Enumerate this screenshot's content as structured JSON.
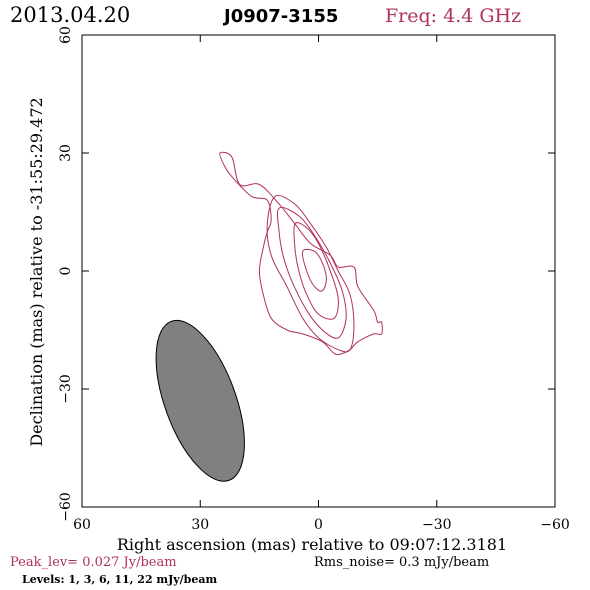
{
  "header": {
    "date": "2013.04.20",
    "source": "J0907-3155",
    "freq": "Freq: 4.4 GHz"
  },
  "axes": {
    "xlabel": "Right ascension (mas) relative to 09:07:12.3181",
    "ylabel": "Declination (mas) relative to -31:55:29.472",
    "xlim": [
      60,
      -60
    ],
    "ylim": [
      -60,
      60
    ],
    "xticks": [
      60,
      30,
      0,
      -30,
      -60
    ],
    "yticks": [
      -60,
      -30,
      0,
      30,
      60
    ],
    "xtick_labels": [
      "60",
      "30",
      "0",
      "−30",
      "−60"
    ],
    "ytick_labels": [
      "−60",
      "−30",
      "0",
      "30",
      "60"
    ]
  },
  "footer": {
    "peak": "Peak_lev=  0.027 Jy/beam",
    "rms": "Rms_noise=  0.3 mJy/beam",
    "levels": "Levels:   1,   3,   6,  11,  22 mJy/beam"
  },
  "colors": {
    "contour": "#b03060",
    "beam_fill": "#808080",
    "axis": "#000000"
  },
  "chart_data": {
    "type": "contour",
    "beam": {
      "center_ra": 30,
      "center_dec": -33,
      "major_mas": 43,
      "minor_mas": 18,
      "pa_deg": -20
    },
    "contours": [
      {
        "level": "1",
        "points": [
          [
            25,
            30
          ],
          [
            22,
            29
          ],
          [
            20,
            22
          ],
          [
            15,
            22
          ],
          [
            10,
            17
          ],
          [
            6,
            12
          ],
          [
            2,
            7
          ],
          [
            -3,
            4
          ],
          [
            -5,
            1
          ],
          [
            -9,
            1
          ],
          [
            -10,
            -4
          ],
          [
            -14,
            -10
          ],
          [
            -15,
            -13
          ],
          [
            -16,
            -13
          ],
          [
            -16,
            -16
          ],
          [
            -14,
            -16
          ],
          [
            -10,
            -18
          ],
          [
            -8,
            -20
          ],
          [
            -6,
            -21
          ],
          [
            -4,
            -21
          ],
          [
            -1,
            -18
          ],
          [
            4,
            -16
          ],
          [
            8,
            -15
          ],
          [
            12,
            -12
          ],
          [
            14,
            -6
          ],
          [
            15,
            0
          ],
          [
            14,
            6
          ],
          [
            13,
            10
          ],
          [
            12,
            13
          ],
          [
            13,
            18
          ],
          [
            17,
            19
          ],
          [
            22,
            24
          ],
          [
            24,
            27
          ],
          [
            25,
            30
          ]
        ]
      },
      {
        "level": "3",
        "points": [
          [
            11,
            19
          ],
          [
            13,
            12
          ],
          [
            12,
            4
          ],
          [
            8,
            -4
          ],
          [
            4,
            -12
          ],
          [
            0,
            -17
          ],
          [
            -5,
            -20
          ],
          [
            -8,
            -20
          ],
          [
            -9,
            -14
          ],
          [
            -8,
            -6
          ],
          [
            -5,
            0
          ],
          [
            -2,
            6
          ],
          [
            2,
            12
          ],
          [
            6,
            17
          ],
          [
            11,
            19
          ]
        ]
      },
      {
        "level": "6",
        "points": [
          [
            10,
            16
          ],
          [
            10,
            10
          ],
          [
            9,
            4
          ],
          [
            7,
            -2
          ],
          [
            3,
            -10
          ],
          [
            -1,
            -15
          ],
          [
            -5,
            -17
          ],
          [
            -7,
            -12
          ],
          [
            -6,
            -5
          ],
          [
            -3,
            2
          ],
          [
            1,
            9
          ],
          [
            5,
            14
          ],
          [
            10,
            16
          ]
        ]
      },
      {
        "level": "11",
        "points": [
          [
            6,
            12
          ],
          [
            6,
            6
          ],
          [
            5,
            0
          ],
          [
            3,
            -6
          ],
          [
            0,
            -11
          ],
          [
            -4,
            -12
          ],
          [
            -5,
            -7
          ],
          [
            -3,
            0
          ],
          [
            0,
            7
          ],
          [
            3,
            11
          ],
          [
            6,
            12
          ]
        ]
      },
      {
        "level": "22",
        "points": [
          [
            4,
            5
          ],
          [
            3,
            0
          ],
          [
            1,
            -4
          ],
          [
            -1,
            -5
          ],
          [
            -2,
            -2
          ],
          [
            -1,
            2
          ],
          [
            1,
            5
          ],
          [
            4,
            5
          ]
        ]
      }
    ]
  }
}
